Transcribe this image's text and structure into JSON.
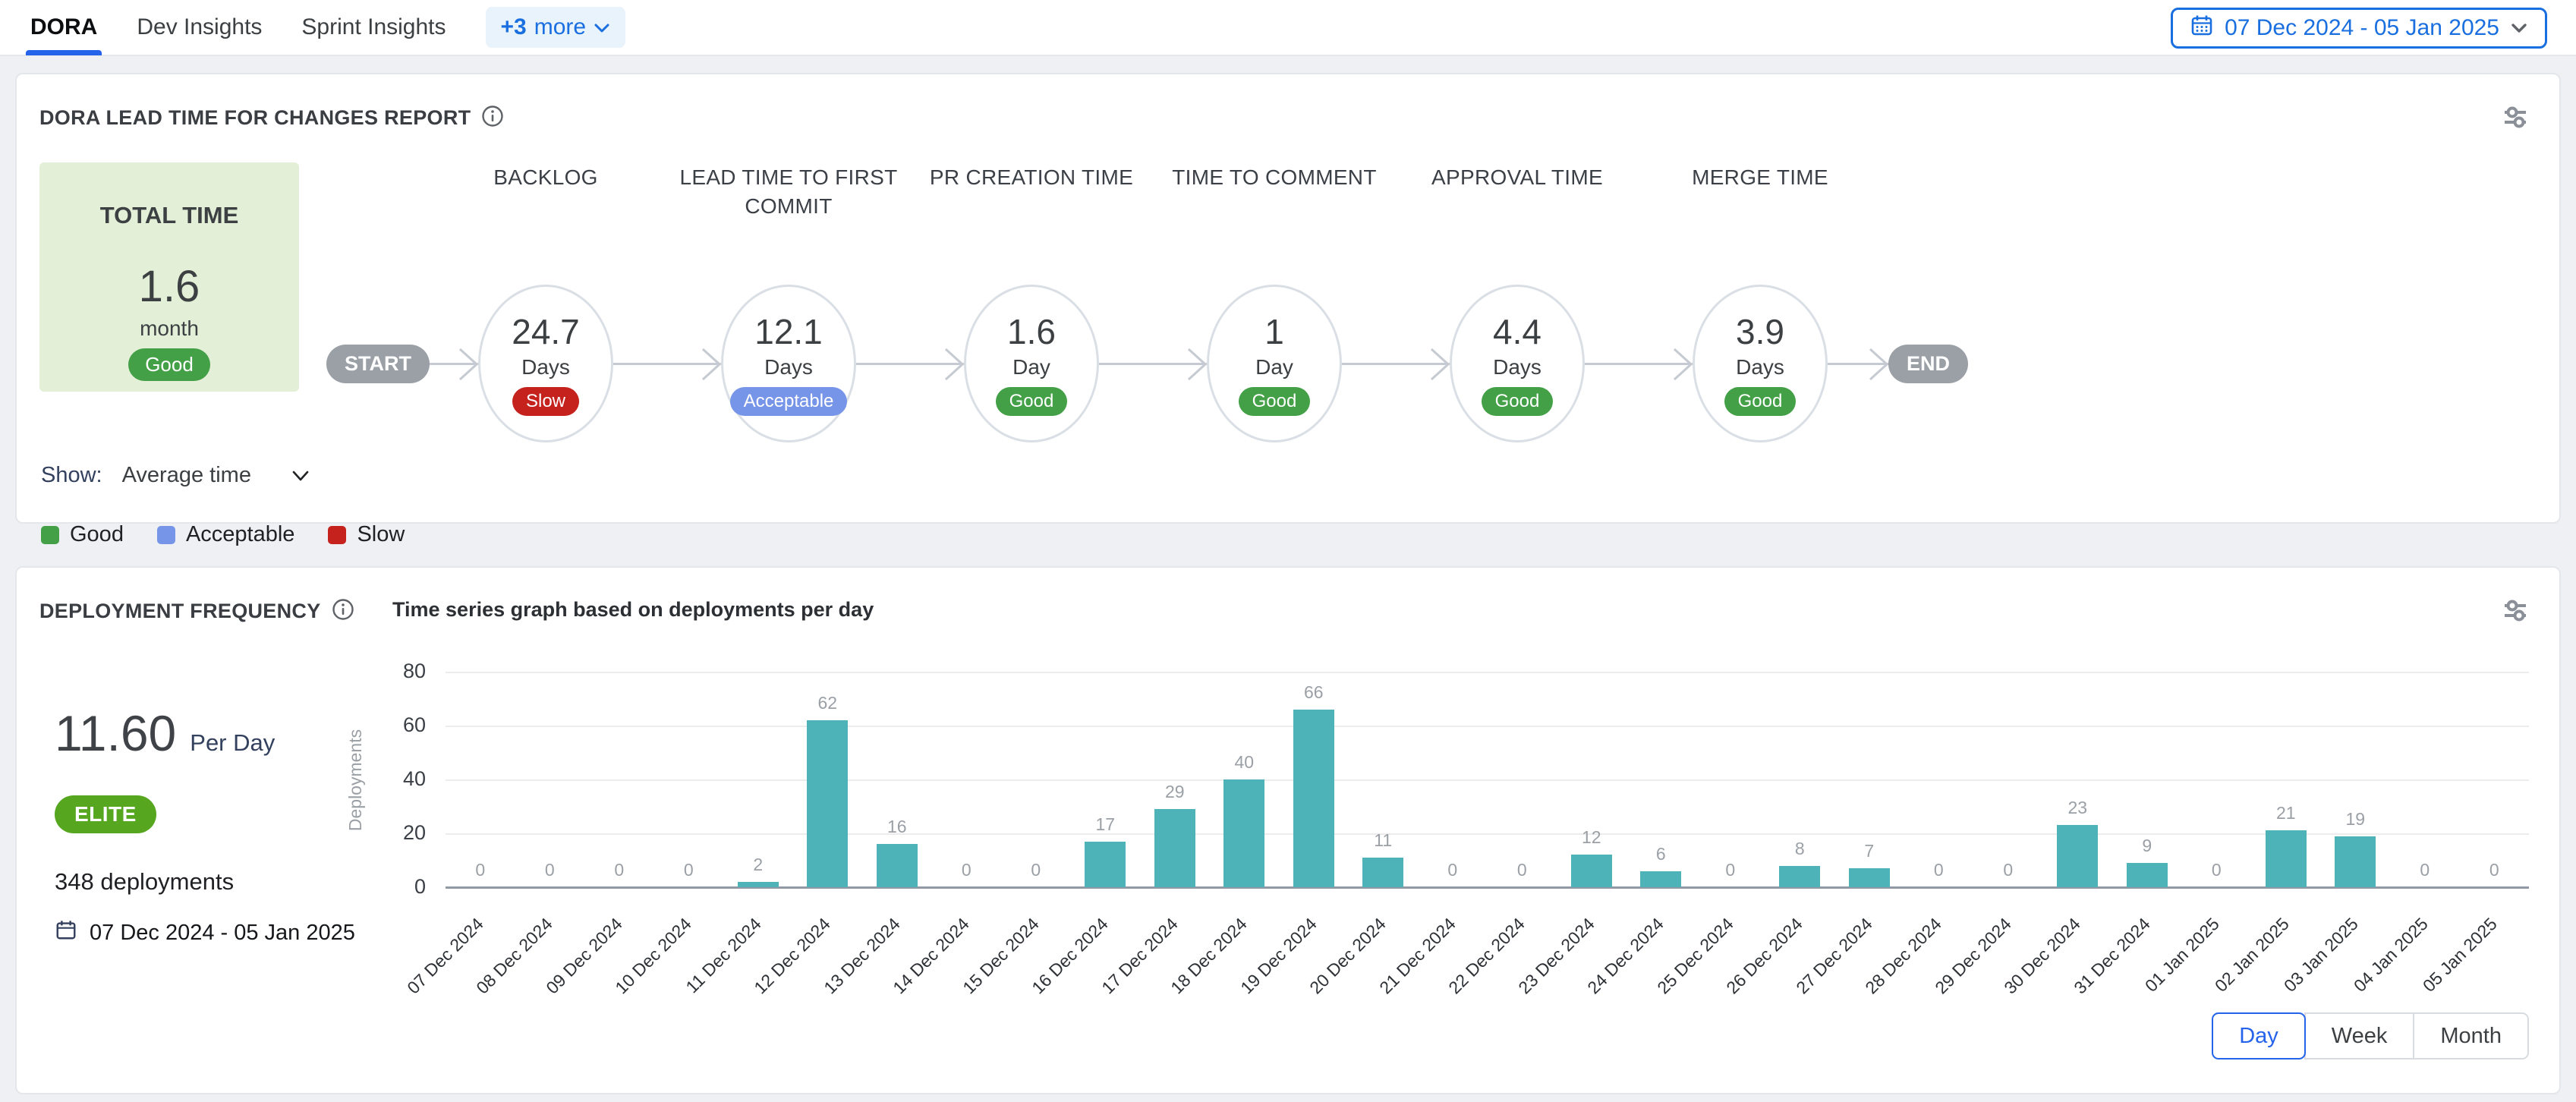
{
  "tabs": {
    "items": [
      {
        "label": "DORA",
        "active": true
      },
      {
        "label": "Dev Insights",
        "active": false
      },
      {
        "label": "Sprint Insights",
        "active": false
      }
    ],
    "more_plus": "+3",
    "more_label": "more"
  },
  "date_range_picker": {
    "value": "07 Dec 2024 - 05 Jan 2025"
  },
  "lead_time_panel": {
    "title": "DORA LEAD TIME FOR CHANGES REPORT",
    "total_card": {
      "title": "TOTAL TIME",
      "value": "1.6",
      "unit": "month",
      "status": "Good"
    },
    "start_label": "START",
    "end_label": "END",
    "stages": [
      {
        "name": "BACKLOG",
        "value": "24.7",
        "unit": "Days",
        "status": "Slow"
      },
      {
        "name": "LEAD TIME TO FIRST COMMIT",
        "value": "12.1",
        "unit": "Days",
        "status": "Acceptable"
      },
      {
        "name": "PR CREATION TIME",
        "value": "1.6",
        "unit": "Day",
        "status": "Good"
      },
      {
        "name": "TIME TO COMMENT",
        "value": "1",
        "unit": "Day",
        "status": "Good"
      },
      {
        "name": "APPROVAL TIME",
        "value": "4.4",
        "unit": "Days",
        "status": "Good"
      },
      {
        "name": "MERGE TIME",
        "value": "3.9",
        "unit": "Days",
        "status": "Good"
      }
    ],
    "show": {
      "label": "Show:",
      "value": "Average time"
    },
    "legend": [
      {
        "label": "Good",
        "color": "#43a047"
      },
      {
        "label": "Acceptable",
        "color": "#7795e8"
      },
      {
        "label": "Slow",
        "color": "#c5221d"
      }
    ]
  },
  "deployment_panel": {
    "title": "DEPLOYMENT FREQUENCY",
    "chart_title": "Time series graph based on deployments per day",
    "rate_value": "11.60",
    "rate_unit": "Per Day",
    "tier": "ELITE",
    "total_deployments": "348 deployments",
    "date_range": "07 Dec 2024 - 05 Jan 2025",
    "granularity": [
      {
        "label": "Day",
        "active": true
      },
      {
        "label": "Week",
        "active": false
      },
      {
        "label": "Month",
        "active": false
      }
    ]
  },
  "chart_data": {
    "type": "bar",
    "title": "Time series graph based on deployments per day",
    "xlabel": "",
    "ylabel": "Deployments",
    "ylim": [
      0,
      80
    ],
    "yticks": [
      0,
      20,
      40,
      60,
      80
    ],
    "grid": true,
    "legend_position": "none",
    "bar_color": "#4db3b9",
    "categories": [
      "07 Dec 2024",
      "08 Dec 2024",
      "09 Dec 2024",
      "10 Dec 2024",
      "11 Dec 2024",
      "12 Dec 2024",
      "13 Dec 2024",
      "14 Dec 2024",
      "15 Dec 2024",
      "16 Dec 2024",
      "17 Dec 2024",
      "18 Dec 2024",
      "19 Dec 2024",
      "20 Dec 2024",
      "21 Dec 2024",
      "22 Dec 2024",
      "23 Dec 2024",
      "24 Dec 2024",
      "25 Dec 2024",
      "26 Dec 2024",
      "27 Dec 2024",
      "28 Dec 2024",
      "29 Dec 2024",
      "30 Dec 2024",
      "31 Dec 2024",
      "01 Jan 2025",
      "02 Jan 2025",
      "03 Jan 2025",
      "04 Jan 2025",
      "05 Jan 2025"
    ],
    "values": [
      0,
      0,
      0,
      0,
      2,
      62,
      16,
      0,
      0,
      17,
      29,
      40,
      66,
      11,
      0,
      0,
      12,
      6,
      0,
      8,
      7,
      0,
      0,
      23,
      9,
      0,
      21,
      19,
      0,
      0
    ]
  },
  "colors": {
    "accent_blue": "#1a6fe0",
    "tab_underline": "#2563eb",
    "good": "#43a047",
    "acceptable": "#7795e8",
    "slow": "#c5221d",
    "elite_green": "#56a620",
    "bar_teal": "#4db3b9",
    "node_gray": "#9aa0a6",
    "total_card_bg": "#e3efd6"
  },
  "icons": {
    "calendar": "calendar-icon",
    "chevron_down": "chevron-down-icon",
    "info": "info-icon",
    "sliders": "sliders-icon"
  }
}
